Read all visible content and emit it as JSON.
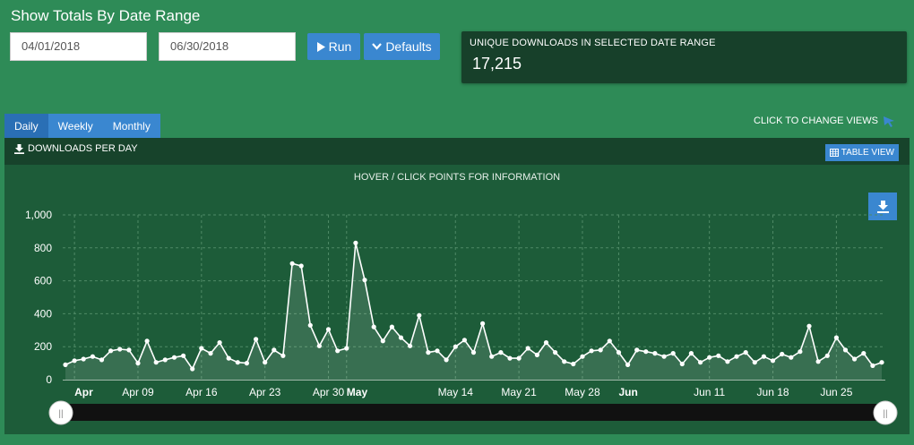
{
  "header": {
    "title": "Show Totals By Date Range"
  },
  "filters": {
    "start_date": "04/01/2018",
    "end_date": "06/30/2018",
    "run_label": "Run",
    "defaults_label": "Defaults"
  },
  "summary": {
    "label": "UNIQUE DOWNLOADS IN SELECTED DATE RANGE",
    "value": "17,215"
  },
  "tabs": [
    {
      "label": "Daily",
      "active": true
    },
    {
      "label": "Weekly",
      "active": false
    },
    {
      "label": "Monthly",
      "active": false
    }
  ],
  "change_views_label": "CLICK TO CHANGE VIEWS",
  "panel": {
    "title": "DOWNLOADS PER DAY",
    "table_view_label": "TABLE VIEW",
    "hint": "HOVER / CLICK POINTS FOR INFORMATION"
  },
  "colors": {
    "background": "#2e8b57",
    "panel": "#1d5c39",
    "accent": "#3a87d0",
    "line": "#ffffff"
  },
  "chart_data": {
    "type": "area",
    "title": "",
    "xlabel": "",
    "ylabel": "",
    "ylim": [
      0,
      1000
    ],
    "yticks": [
      0,
      200,
      400,
      600,
      800,
      1000
    ],
    "ytick_labels": [
      "0",
      "200",
      "400",
      "600",
      "800",
      "1,000"
    ],
    "x_start": "2018-04-01",
    "x_end": "2018-06-30",
    "x_ticks": [
      {
        "date": "2018-04-02",
        "label": "Apr",
        "bold": true
      },
      {
        "date": "2018-04-09",
        "label": "Apr 09",
        "bold": false
      },
      {
        "date": "2018-04-16",
        "label": "Apr 16",
        "bold": false
      },
      {
        "date": "2018-04-23",
        "label": "Apr 23",
        "bold": false
      },
      {
        "date": "2018-04-30",
        "label": "Apr 30",
        "bold": false
      },
      {
        "date": "2018-05-02",
        "label": "May",
        "bold": true
      },
      {
        "date": "2018-05-14",
        "label": "May 14",
        "bold": false
      },
      {
        "date": "2018-05-21",
        "label": "May 21",
        "bold": false
      },
      {
        "date": "2018-05-28",
        "label": "May 28",
        "bold": false
      },
      {
        "date": "2018-06-01",
        "label": "Jun",
        "bold": true
      },
      {
        "date": "2018-06-11",
        "label": "Jun 11",
        "bold": false
      },
      {
        "date": "2018-06-18",
        "label": "Jun 18",
        "bold": false
      },
      {
        "date": "2018-06-25",
        "label": "Jun 25",
        "bold": false
      }
    ],
    "grid": true,
    "series": [
      {
        "values": [
          90,
          115,
          125,
          140,
          120,
          175,
          185,
          180,
          100,
          235,
          105,
          120,
          135,
          145,
          65,
          190,
          160,
          225,
          130,
          105,
          100,
          245,
          105,
          180,
          145,
          705,
          690,
          330,
          205,
          305,
          175,
          190,
          830,
          605,
          320,
          235,
          320,
          255,
          205,
          390,
          165,
          175,
          120,
          200,
          240,
          165,
          340,
          140,
          165,
          130,
          130,
          190,
          150,
          225,
          165,
          110,
          95,
          140,
          175,
          180,
          235,
          165,
          90,
          180,
          170,
          160,
          140,
          160,
          95,
          160,
          105,
          135,
          145,
          110,
          140,
          165,
          105,
          140,
          115,
          155,
          135,
          170,
          325,
          110,
          145,
          255,
          180,
          125,
          160,
          85,
          105
        ]
      }
    ]
  },
  "navigator": {
    "left_handle": "||",
    "right_handle": "||"
  }
}
